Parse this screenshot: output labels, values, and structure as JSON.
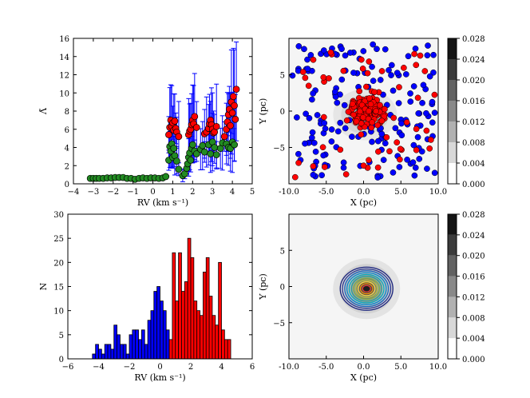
{
  "chart_data": [
    {
      "id": "rv_lambda",
      "type": "scatter",
      "xlabel": "RV  (km s⁻¹)",
      "ylabel": "Λ̃",
      "xlim": [
        -4,
        5
      ],
      "ylim": [
        0,
        16
      ],
      "xticks": [
        -4,
        -3,
        -2,
        -1,
        0,
        1,
        2,
        3,
        4,
        5
      ],
      "yticks": [
        0,
        2,
        4,
        6,
        8,
        10,
        12,
        14,
        16
      ],
      "colors": {
        "group_a": "#228b22",
        "group_b": "#ff0000",
        "errorbar": "#0000ff"
      },
      "series": [
        {
          "name": "green",
          "points": [
            [
              -3.15,
              0.6
            ],
            [
              -3.0,
              0.6
            ],
            [
              -2.85,
              0.6
            ],
            [
              -2.7,
              0.6
            ],
            [
              -2.5,
              0.6
            ],
            [
              -2.3,
              0.65
            ],
            [
              -2.1,
              0.65
            ],
            [
              -1.9,
              0.7
            ],
            [
              -1.7,
              0.7
            ],
            [
              -1.5,
              0.7
            ],
            [
              -1.3,
              0.6
            ],
            [
              -1.1,
              0.6
            ],
            [
              -0.9,
              0.5
            ],
            [
              -0.7,
              0.6
            ],
            [
              -0.5,
              0.65
            ],
            [
              -0.3,
              0.6
            ],
            [
              -0.1,
              0.65
            ],
            [
              0.1,
              0.65
            ],
            [
              0.3,
              0.6
            ],
            [
              0.5,
              0.65
            ],
            [
              0.65,
              0.8
            ],
            [
              0.8,
              2.6
            ],
            [
              0.85,
              4.1
            ],
            [
              0.9,
              3.6
            ],
            [
              0.95,
              4.4
            ],
            [
              1.0,
              2.9
            ],
            [
              1.05,
              3.9
            ],
            [
              1.1,
              3.1
            ],
            [
              1.2,
              2.5
            ],
            [
              1.3,
              1.6
            ],
            [
              1.5,
              0.9
            ],
            [
              1.6,
              1.1
            ],
            [
              1.7,
              1.7
            ],
            [
              1.75,
              2.2
            ],
            [
              1.8,
              2.9
            ],
            [
              1.85,
              3.4
            ],
            [
              1.9,
              2.6
            ],
            [
              1.95,
              3.9
            ],
            [
              2.0,
              4.3
            ],
            [
              2.1,
              3.6
            ],
            [
              2.2,
              3.3
            ],
            [
              2.4,
              3.8
            ],
            [
              2.5,
              4.2
            ],
            [
              2.6,
              3.5
            ],
            [
              2.8,
              4.3
            ],
            [
              2.9,
              3.3
            ],
            [
              3.0,
              4.6
            ],
            [
              3.1,
              4.0
            ],
            [
              3.2,
              3.2
            ],
            [
              3.4,
              3.9
            ],
            [
              3.5,
              4.5
            ],
            [
              3.7,
              4.4
            ],
            [
              3.8,
              4.0
            ],
            [
              3.9,
              3.9
            ],
            [
              4.0,
              4.6
            ],
            [
              4.1,
              4.3
            ]
          ]
        },
        {
          "name": "red",
          "points": [
            [
              0.8,
              5.4
            ],
            [
              0.85,
              6.2
            ],
            [
              0.9,
              7.0
            ],
            [
              0.95,
              6.3
            ],
            [
              1.0,
              6.7
            ],
            [
              1.05,
              5.9
            ],
            [
              1.1,
              6.9
            ],
            [
              1.15,
              6.1
            ],
            [
              1.2,
              5.7
            ],
            [
              1.3,
              5.2
            ],
            [
              1.8,
              5.4
            ],
            [
              1.85,
              5.8
            ],
            [
              1.9,
              6.0
            ],
            [
              1.95,
              6.5
            ],
            [
              2.0,
              7.0
            ],
            [
              2.05,
              6.6
            ],
            [
              2.1,
              7.4
            ],
            [
              2.2,
              6.2
            ],
            [
              2.6,
              5.5
            ],
            [
              2.7,
              5.7
            ],
            [
              2.8,
              6.1
            ],
            [
              2.85,
              6.6
            ],
            [
              2.9,
              7.0
            ],
            [
              2.95,
              6.5
            ],
            [
              3.0,
              6.0
            ],
            [
              3.05,
              5.6
            ],
            [
              3.1,
              5.7
            ],
            [
              3.2,
              6.3
            ],
            [
              3.6,
              5.2
            ],
            [
              3.7,
              6.0
            ],
            [
              3.75,
              6.8
            ],
            [
              3.8,
              7.6
            ],
            [
              3.85,
              8.2
            ],
            [
              3.9,
              6.4
            ],
            [
              3.95,
              9.0
            ],
            [
              4.0,
              7.8
            ],
            [
              4.05,
              9.6
            ],
            [
              4.1,
              8.6
            ],
            [
              4.15,
              7.1
            ],
            [
              4.2,
              10.4
            ]
          ]
        }
      ]
    },
    {
      "id": "xy_positions",
      "type": "scatter",
      "xlabel": "X (pc)",
      "ylabel": "Y (pc)",
      "xlim": [
        -10,
        10
      ],
      "ylim": [
        -10,
        10
      ],
      "xtick_labels": [
        "-10.0",
        "-5.0",
        "0.0",
        "5.0",
        "10.0"
      ],
      "ytick_labels": [
        "-5",
        "0",
        "5"
      ],
      "colors": {
        "cluster": "#ff0000",
        "field": "#0000ff"
      },
      "colorbar": {
        "min": 0.0,
        "max": 0.028,
        "labels": [
          "0.000",
          "0.004",
          "0.008",
          "0.012",
          "0.016",
          "0.020",
          "0.024",
          "0.028"
        ]
      }
    },
    {
      "id": "rv_histogram",
      "type": "bar",
      "xlabel": "RV  (km s⁻¹)",
      "ylabel": "N",
      "xlim": [
        -6,
        6
      ],
      "ylim": [
        0,
        30
      ],
      "xticks": [
        -6,
        -4,
        -2,
        0,
        2,
        4,
        6
      ],
      "yticks": [
        0,
        5,
        10,
        15,
        20,
        25,
        30
      ],
      "bin_width": 0.2,
      "colors": {
        "blue": "#0000ff",
        "red": "#ff0000"
      },
      "series": [
        {
          "name": "blue",
          "bins": [
            [
              -4.4,
              1
            ],
            [
              -4.2,
              3
            ],
            [
              -4.0,
              2
            ],
            [
              -3.8,
              1
            ],
            [
              -3.6,
              3
            ],
            [
              -3.4,
              3
            ],
            [
              -3.2,
              2
            ],
            [
              -3.0,
              7
            ],
            [
              -2.8,
              5
            ],
            [
              -2.6,
              3
            ],
            [
              -2.4,
              3
            ],
            [
              -2.2,
              1
            ],
            [
              -2.0,
              5
            ],
            [
              -1.8,
              6
            ],
            [
              -1.6,
              6
            ],
            [
              -1.4,
              4
            ],
            [
              -1.2,
              6
            ],
            [
              -1.0,
              3
            ],
            [
              -0.8,
              8
            ],
            [
              -0.6,
              10
            ],
            [
              -0.4,
              14
            ],
            [
              -0.2,
              15
            ],
            [
              0.0,
              12
            ],
            [
              0.2,
              10
            ],
            [
              0.4,
              6
            ],
            [
              0.6,
              3
            ]
          ]
        },
        {
          "name": "red",
          "bins": [
            [
              0.6,
              4
            ],
            [
              0.8,
              22
            ],
            [
              1.0,
              12
            ],
            [
              1.2,
              22
            ],
            [
              1.4,
              14
            ],
            [
              1.6,
              16
            ],
            [
              1.8,
              25
            ],
            [
              2.0,
              21
            ],
            [
              2.2,
              12
            ],
            [
              2.4,
              10
            ],
            [
              2.6,
              9
            ],
            [
              2.8,
              18
            ],
            [
              3.0,
              21
            ],
            [
              3.2,
              13
            ],
            [
              3.4,
              9
            ],
            [
              3.6,
              7
            ],
            [
              3.8,
              20
            ],
            [
              4.0,
              6
            ],
            [
              4.2,
              4
            ],
            [
              4.4,
              4
            ]
          ]
        }
      ]
    },
    {
      "id": "density_map",
      "type": "heatmap",
      "xlabel": "X (pc)",
      "ylabel": "Y (pc)",
      "xlim": [
        -10,
        10
      ],
      "ylim": [
        -10,
        10
      ],
      "xtick_labels": [
        "-10.0",
        "-5.0",
        "0.0",
        "5.0",
        "10.0"
      ],
      "ytick_labels": [
        "-5",
        "0",
        "5"
      ],
      "colorbar": {
        "min": 0.0,
        "max": 0.028,
        "labels": [
          "0.000",
          "0.004",
          "0.008",
          "0.012",
          "0.016",
          "0.020",
          "0.024",
          "0.028"
        ]
      }
    }
  ]
}
